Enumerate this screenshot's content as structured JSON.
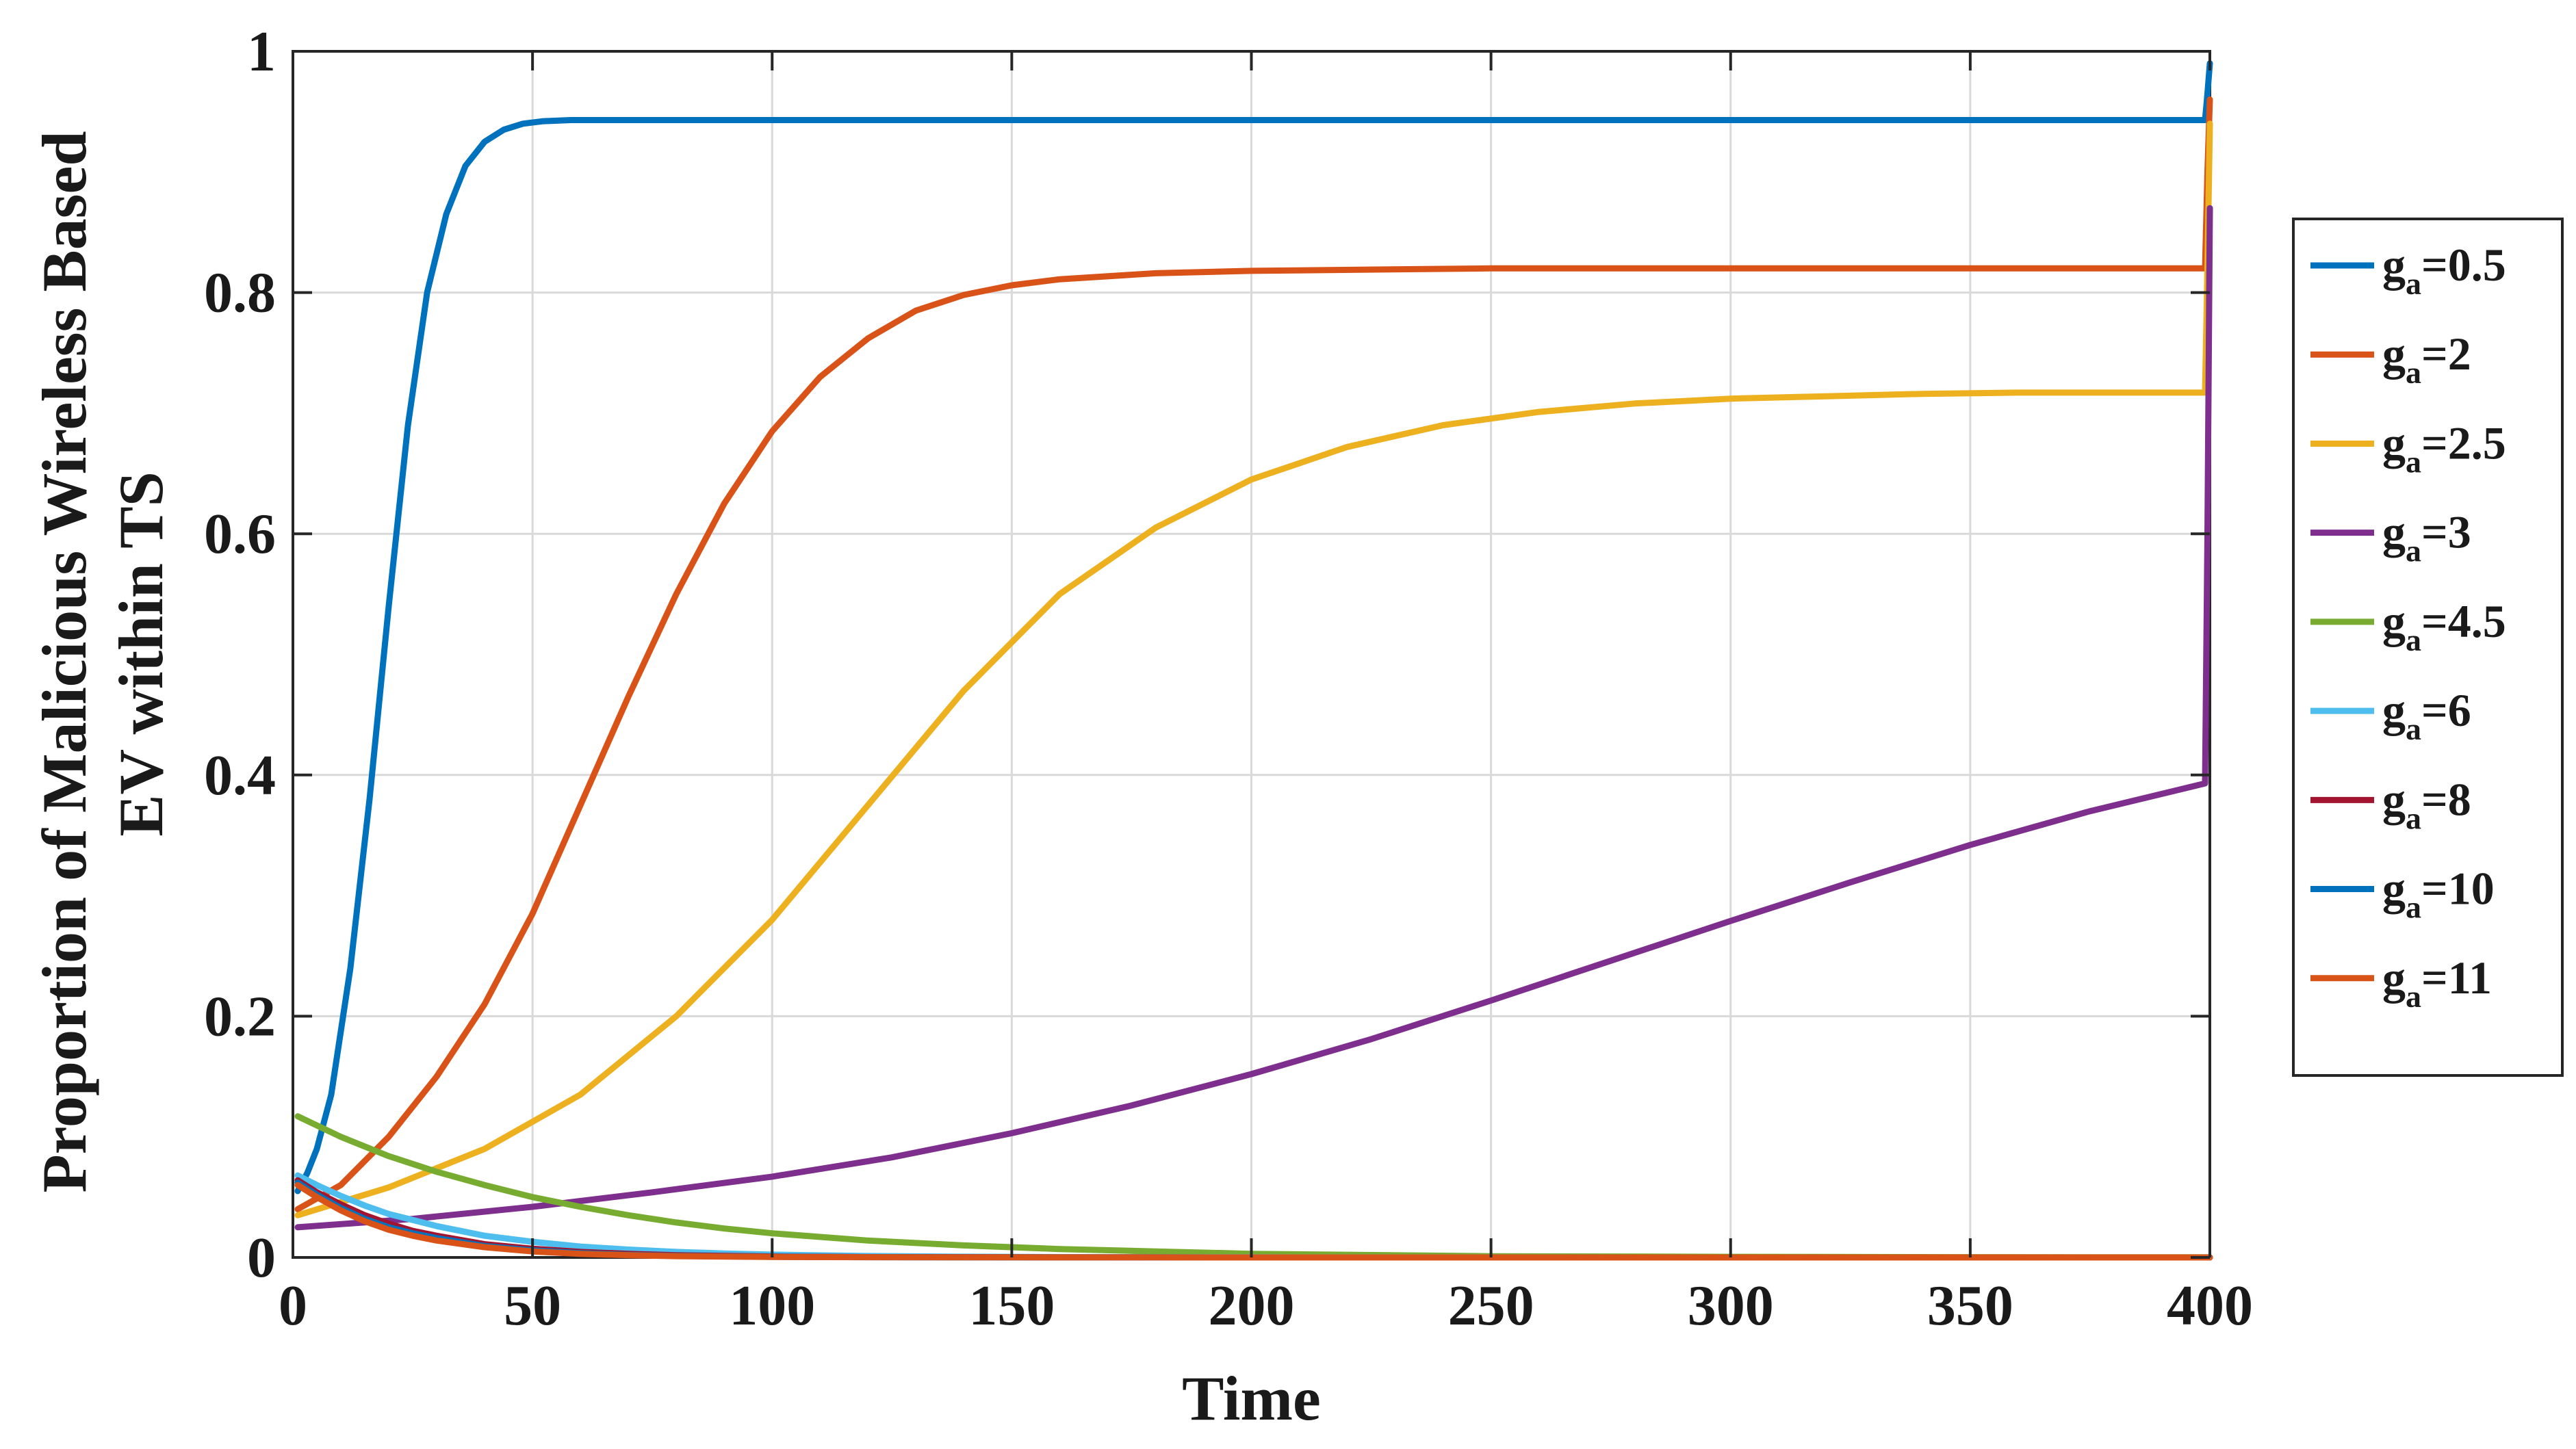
{
  "chart_data": {
    "type": "line",
    "title": "",
    "xlabel": "Time",
    "ylabel_lines": [
      "Proportion of Malicious  Wireless Based",
      "EV within TS"
    ],
    "xlim": [
      0,
      400
    ],
    "ylim": [
      0,
      1
    ],
    "xticks": [
      0,
      50,
      100,
      150,
      200,
      250,
      300,
      350,
      400
    ],
    "yticks": [
      0,
      0.2,
      0.4,
      0.6,
      0.8,
      1
    ],
    "xtick_labels": [
      "0",
      "50",
      "100",
      "150",
      "200",
      "250",
      "300",
      "350",
      "400"
    ],
    "ytick_labels": [
      "0",
      "0.2",
      "0.4",
      "0.6",
      "0.8",
      "1"
    ],
    "grid": true,
    "legend_position": "outside-right",
    "series": [
      {
        "legend_base": "g",
        "legend_sub": "a",
        "legend_value": "=0.5",
        "color": "#0072BD",
        "x": [
          1,
          3,
          5,
          8,
          12,
          16,
          20,
          24,
          28,
          32,
          36,
          40,
          44,
          48,
          52,
          58,
          65,
          80,
          100,
          150,
          200,
          300,
          399,
          399.5,
          400
        ],
        "y": [
          0.055,
          0.07,
          0.09,
          0.135,
          0.24,
          0.38,
          0.54,
          0.69,
          0.8,
          0.865,
          0.905,
          0.925,
          0.935,
          0.94,
          0.942,
          0.943,
          0.943,
          0.943,
          0.943,
          0.943,
          0.943,
          0.943,
          0.943,
          0.965,
          0.99
        ]
      },
      {
        "legend_base": "g",
        "legend_sub": "a",
        "legend_value": "=2",
        "color": "#D95319",
        "x": [
          1,
          10,
          20,
          30,
          40,
          50,
          60,
          70,
          80,
          90,
          100,
          110,
          120,
          130,
          140,
          150,
          160,
          180,
          200,
          250,
          300,
          399,
          399.5,
          400
        ],
        "y": [
          0.04,
          0.06,
          0.1,
          0.15,
          0.21,
          0.285,
          0.375,
          0.465,
          0.55,
          0.625,
          0.685,
          0.73,
          0.762,
          0.785,
          0.798,
          0.806,
          0.811,
          0.816,
          0.818,
          0.82,
          0.82,
          0.82,
          0.9,
          0.96
        ]
      },
      {
        "legend_base": "g",
        "legend_sub": "a",
        "legend_value": "=2.5",
        "color": "#EDB120",
        "x": [
          1,
          20,
          40,
          60,
          80,
          100,
          120,
          140,
          160,
          180,
          200,
          220,
          240,
          260,
          280,
          300,
          320,
          340,
          360,
          380,
          399,
          399.5,
          400
        ],
        "y": [
          0.035,
          0.058,
          0.09,
          0.135,
          0.2,
          0.28,
          0.375,
          0.47,
          0.55,
          0.605,
          0.645,
          0.672,
          0.69,
          0.701,
          0.708,
          0.712,
          0.714,
          0.716,
          0.717,
          0.717,
          0.717,
          0.82,
          0.94
        ]
      },
      {
        "legend_base": "g",
        "legend_sub": "a",
        "legend_value": "=3",
        "color": "#7E2F8E",
        "x": [
          1,
          25,
          50,
          75,
          100,
          125,
          150,
          175,
          200,
          225,
          250,
          275,
          300,
          325,
          350,
          375,
          399,
          399.5,
          400
        ],
        "y": [
          0.025,
          0.032,
          0.042,
          0.054,
          0.067,
          0.083,
          0.103,
          0.126,
          0.152,
          0.181,
          0.213,
          0.246,
          0.279,
          0.311,
          0.342,
          0.37,
          0.393,
          0.6,
          0.87
        ]
      },
      {
        "legend_base": "g",
        "legend_sub": "a",
        "legend_value": "=4.5",
        "color": "#77AC30",
        "x": [
          1,
          10,
          20,
          30,
          40,
          50,
          60,
          70,
          80,
          90,
          100,
          120,
          140,
          160,
          180,
          200,
          250,
          300,
          350,
          400
        ],
        "y": [
          0.117,
          0.1,
          0.084,
          0.071,
          0.06,
          0.05,
          0.042,
          0.035,
          0.029,
          0.024,
          0.02,
          0.014,
          0.01,
          0.007,
          0.005,
          0.003,
          0.001,
          0.0005,
          0.0002,
          0.0001
        ]
      },
      {
        "legend_base": "g",
        "legend_sub": "a",
        "legend_value": "=6",
        "color": "#4DBEEE",
        "x": [
          1,
          5,
          10,
          15,
          20,
          25,
          30,
          40,
          50,
          60,
          70,
          80,
          90,
          100,
          120,
          140,
          160,
          200,
          300,
          400
        ],
        "y": [
          0.068,
          0.06,
          0.051,
          0.043,
          0.036,
          0.031,
          0.026,
          0.018,
          0.013,
          0.009,
          0.0065,
          0.0046,
          0.0033,
          0.0023,
          0.0012,
          0.0006,
          0.0003,
          0.0001,
          0,
          0
        ]
      },
      {
        "legend_base": "g",
        "legend_sub": "a",
        "legend_value": "=8",
        "color": "#A2142F",
        "x": [
          1,
          5,
          10,
          15,
          20,
          25,
          30,
          40,
          50,
          60,
          70,
          80,
          100,
          120,
          150,
          200,
          300,
          400
        ],
        "y": [
          0.064,
          0.054,
          0.044,
          0.035,
          0.028,
          0.022,
          0.018,
          0.011,
          0.0072,
          0.0046,
          0.003,
          0.0019,
          0.0008,
          0.0003,
          0.0001,
          0,
          0,
          0
        ]
      },
      {
        "legend_base": "g",
        "legend_sub": "a",
        "legend_value": "=10",
        "color": "#0072BD",
        "x": [
          1,
          5,
          10,
          15,
          20,
          25,
          30,
          40,
          50,
          60,
          70,
          80,
          100,
          120,
          150,
          200,
          300,
          400
        ],
        "y": [
          0.062,
          0.052,
          0.041,
          0.032,
          0.025,
          0.02,
          0.016,
          0.0095,
          0.0058,
          0.0035,
          0.0021,
          0.0013,
          0.0005,
          0.0002,
          0.0001,
          0,
          0,
          0
        ]
      },
      {
        "legend_base": "g",
        "legend_sub": "a",
        "legend_value": "=11",
        "color": "#D95319",
        "x": [
          1,
          5,
          10,
          15,
          20,
          25,
          30,
          40,
          50,
          60,
          70,
          80,
          100,
          120,
          150,
          200,
          300,
          400
        ],
        "y": [
          0.06,
          0.05,
          0.039,
          0.03,
          0.023,
          0.018,
          0.014,
          0.0085,
          0.005,
          0.003,
          0.0018,
          0.0011,
          0.0004,
          0.0002,
          0.0001,
          0,
          0,
          0
        ]
      }
    ]
  }
}
